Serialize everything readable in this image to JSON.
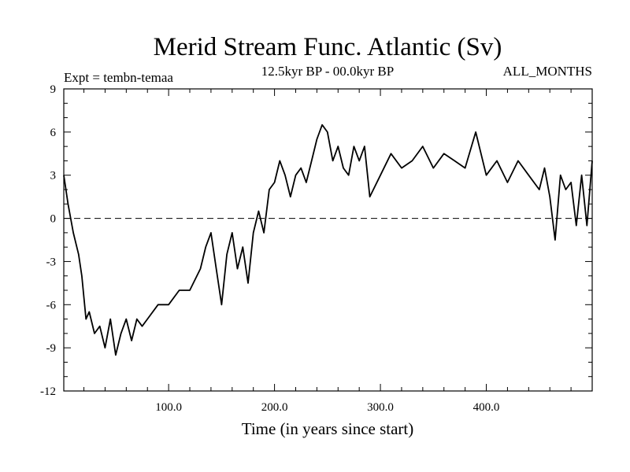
{
  "chart_data": {
    "type": "line",
    "title": "Merid Stream Func. Atlantic (Sv)",
    "subtitle": "12.5kyr BP - 00.0kyr BP",
    "left_label": "Expt = tembn-temaa",
    "right_label": "ALL_MONTHS",
    "xlabel": "Time (in years since start)",
    "ylabel": "",
    "xlim": [
      1,
      500
    ],
    "ylim": [
      -12,
      9
    ],
    "x_ticks": [
      100,
      200,
      300,
      400
    ],
    "x_tick_labels": [
      "100.0",
      "200.0",
      "300.0",
      "400.0"
    ],
    "y_ticks": [
      -12,
      -9,
      -6,
      -3,
      0,
      3,
      6,
      9
    ],
    "y_tick_labels": [
      "-12",
      "-9",
      "-6",
      "-3",
      "0",
      "3",
      "6",
      "9"
    ],
    "reference_line": 0,
    "grid": false,
    "series": [
      {
        "name": "Merid Stream Func. Atlantic",
        "x": [
          1,
          5,
          10,
          15,
          18,
          22,
          25,
          30,
          35,
          40,
          45,
          50,
          55,
          60,
          65,
          70,
          75,
          80,
          90,
          100,
          110,
          120,
          130,
          135,
          140,
          145,
          150,
          155,
          160,
          165,
          170,
          175,
          180,
          185,
          190,
          195,
          200,
          205,
          210,
          215,
          220,
          225,
          230,
          235,
          240,
          245,
          250,
          255,
          260,
          265,
          270,
          275,
          280,
          285,
          290,
          300,
          310,
          320,
          330,
          340,
          350,
          360,
          370,
          380,
          390,
          400,
          410,
          420,
          430,
          440,
          450,
          455,
          460,
          465,
          470,
          475,
          480,
          485,
          490,
          495,
          500
        ],
        "values": [
          3.0,
          1.0,
          -1.0,
          -2.5,
          -4.0,
          -7.0,
          -6.5,
          -8.0,
          -7.5,
          -9.0,
          -7.0,
          -9.5,
          -8.0,
          -7.0,
          -8.5,
          -7.0,
          -7.5,
          -7.0,
          -6.0,
          -6.0,
          -5.0,
          -5.0,
          -3.5,
          -2.0,
          -1.0,
          -3.5,
          -6.0,
          -2.5,
          -1.0,
          -3.5,
          -2.0,
          -4.5,
          -1.0,
          0.5,
          -1.0,
          2.0,
          2.5,
          4.0,
          3.0,
          1.5,
          3.0,
          3.5,
          2.5,
          4.0,
          5.5,
          6.5,
          6.0,
          4.0,
          5.0,
          3.5,
          3.0,
          5.0,
          4.0,
          5.0,
          1.5,
          3.0,
          4.5,
          3.5,
          4.0,
          5.0,
          3.5,
          4.5,
          4.0,
          3.5,
          6.0,
          3.0,
          4.0,
          2.5,
          4.0,
          3.0,
          2.0,
          3.5,
          1.5,
          -1.5,
          3.0,
          2.0,
          2.5,
          -0.5,
          3.0,
          -0.5,
          4.0
        ]
      }
    ]
  }
}
